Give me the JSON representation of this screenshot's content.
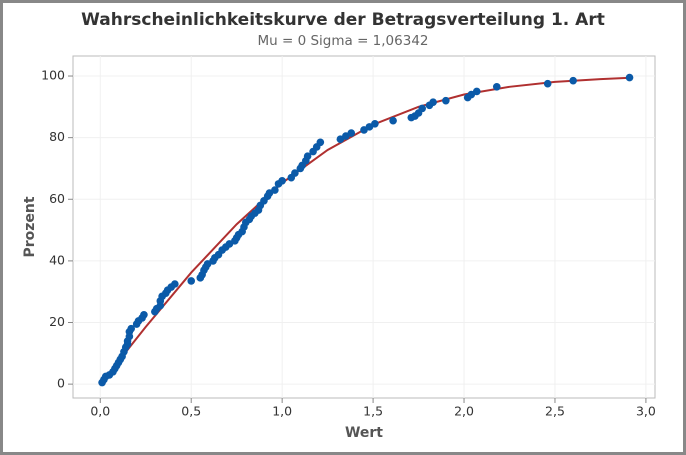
{
  "chart_data": {
    "type": "scatter",
    "title": "Wahrscheinlichkeitskurve der Betragsverteilung 1. Art",
    "subtitle": "Mu = 0  Sigma = 1,06342",
    "x_label": "Wert",
    "y_label": "Prozent",
    "xlim": [
      -0.15,
      3.05
    ],
    "ylim": [
      -4.5,
      106.5
    ],
    "xticks": [
      {
        "value": 0,
        "label": "0,0"
      },
      {
        "value": 0.5,
        "label": "0,5"
      },
      {
        "value": 1,
        "label": "1,0"
      },
      {
        "value": 1.5,
        "label": "1,5"
      },
      {
        "value": 2,
        "label": "2,0"
      },
      {
        "value": 2.5,
        "label": "2,5"
      },
      {
        "value": 3,
        "label": "3,0"
      }
    ],
    "yticks": [
      0,
      20,
      40,
      60,
      80,
      100
    ],
    "grid": true,
    "series": [
      {
        "type": "line",
        "color": "#b03030",
        "x": [
          0,
          0.25,
          0.5,
          0.75,
          1,
          1.25,
          1.5,
          1.75,
          2,
          2.25,
          2.5,
          2.75,
          2.9
        ],
        "values": [
          0,
          18.6,
          36.2,
          51.9,
          65.3,
          76.0,
          84.2,
          90.0,
          94.0,
          96.5,
          98.1,
          99.0,
          99.4
        ]
      },
      {
        "type": "scatter",
        "color": "#0b5aa8",
        "x": [
          0.01,
          0.02,
          0.03,
          0.05,
          0.07,
          0.08,
          0.09,
          0.1,
          0.11,
          0.12,
          0.13,
          0.14,
          0.15,
          0.15,
          0.16,
          0.16,
          0.17,
          0.2,
          0.21,
          0.23,
          0.24,
          0.3,
          0.31,
          0.33,
          0.33,
          0.34,
          0.36,
          0.37,
          0.39,
          0.41,
          0.5,
          0.55,
          0.56,
          0.57,
          0.58,
          0.59,
          0.62,
          0.63,
          0.65,
          0.67,
          0.69,
          0.71,
          0.74,
          0.75,
          0.76,
          0.78,
          0.79,
          0.8,
          0.82,
          0.83,
          0.85,
          0.87,
          0.88,
          0.9,
          0.92,
          0.93,
          0.96,
          0.98,
          1.0,
          1.05,
          1.07,
          1.1,
          1.11,
          1.13,
          1.14,
          1.17,
          1.19,
          1.21,
          1.32,
          1.35,
          1.38,
          1.45,
          1.48,
          1.51,
          1.61,
          1.71,
          1.73,
          1.75,
          1.77,
          1.81,
          1.83,
          1.9,
          2.02,
          2.04,
          2.07,
          2.18,
          2.46,
          2.6,
          2.91
        ],
        "values": [
          0.5,
          1.5,
          2.5,
          3,
          4,
          5,
          6,
          7,
          8,
          9,
          10.5,
          12,
          13,
          14,
          15.5,
          17,
          18,
          19.5,
          20.5,
          21.5,
          22.5,
          23.5,
          24.5,
          25.5,
          27,
          28.5,
          29.5,
          30.5,
          31.5,
          32.5,
          33.5,
          34.5,
          35.5,
          37,
          38,
          39,
          40,
          41,
          42,
          43.5,
          44.5,
          45.5,
          46.5,
          47.5,
          48.5,
          49.5,
          51,
          52.5,
          53.5,
          54.5,
          55.5,
          56.5,
          58,
          59.5,
          61,
          62,
          63,
          65,
          66,
          67,
          68.5,
          70,
          71,
          72.5,
          74,
          75.5,
          77,
          78.5,
          79.5,
          80.5,
          81.5,
          82.5,
          83.5,
          84.5,
          85.5,
          86.5,
          87,
          88,
          89.5,
          90.5,
          91.5,
          92,
          93,
          94,
          95,
          96.5,
          97.5,
          98.5,
          99.5
        ]
      }
    ]
  }
}
